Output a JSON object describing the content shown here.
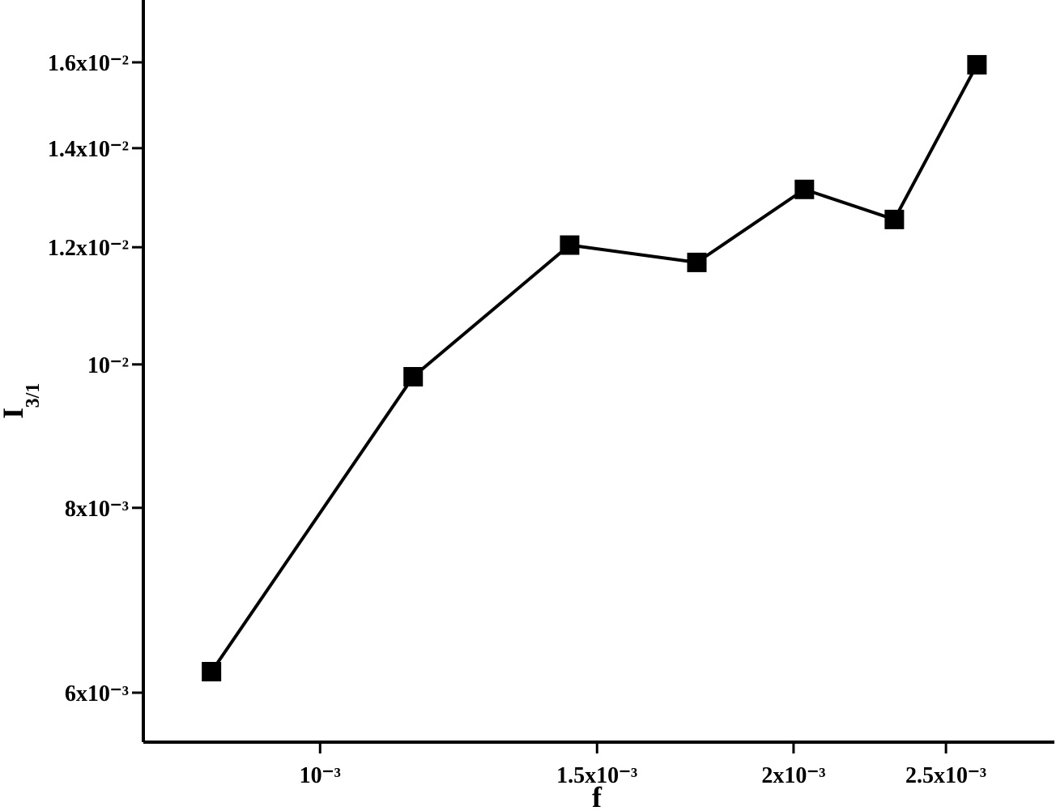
{
  "chart_data": {
    "type": "line",
    "xlabel": "f",
    "ylabel": {
      "text": "I",
      "subscript": "3/1"
    },
    "x": [
      0.000853,
      0.001146,
      0.001441,
      0.001736,
      0.002032,
      0.002318,
      0.002616
    ],
    "series": [
      {
        "color": "#000000",
        "marker": "square",
        "values": [
          0.0062,
          0.00981,
          0.01204,
          0.01172,
          0.01313,
          0.01253,
          0.01594
        ]
      }
    ],
    "xscale": "log",
    "yscale": "log",
    "xlim": [
      0.000772,
      0.00293
    ],
    "ylim": [
      0.005556,
      0.01763
    ],
    "xticks": [
      {
        "value": 0.001,
        "label": "10⁻³"
      },
      {
        "value": 0.0015,
        "label": "1.5x10⁻³"
      },
      {
        "value": 0.002,
        "label": "2x10⁻³"
      },
      {
        "value": 0.0025,
        "label": "2.5x10⁻³"
      }
    ],
    "yticks": [
      {
        "value": 0.006,
        "label": "6x10⁻³"
      },
      {
        "value": 0.008,
        "label": "8x10⁻³"
      },
      {
        "value": 0.01,
        "label": "10⁻²"
      },
      {
        "value": 0.012,
        "label": "1.2x10⁻²"
      },
      {
        "value": 0.014,
        "label": "1.4x10⁻²"
      },
      {
        "value": 0.016,
        "label": "1.6x10⁻²"
      }
    ],
    "grid": false
  }
}
